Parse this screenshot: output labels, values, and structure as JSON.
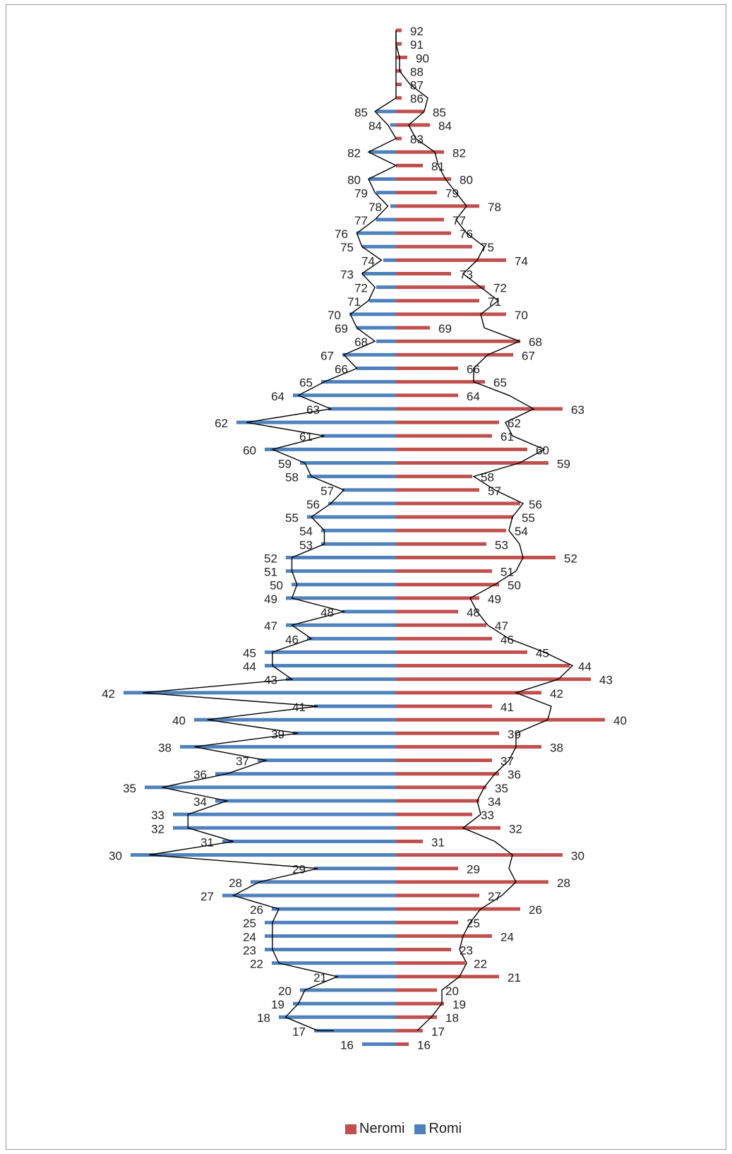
{
  "chart_data": {
    "type": "bar",
    "orientation": "horizontal-diverging",
    "overlay": "line",
    "legend": {
      "position": "bottom",
      "entries": [
        "Neromi",
        "Romi"
      ]
    },
    "colors": {
      "Neromi": "#c0504d",
      "Romi": "#4f81bd",
      "line": "#000000"
    },
    "rows": [
      {
        "label": "92",
        "neromi": 8,
        "romi": 0
      },
      {
        "label": "91",
        "neromi": 8,
        "romi": 0
      },
      {
        "label": "90",
        "neromi": 16,
        "romi": 0
      },
      {
        "label": "88",
        "neromi": 8,
        "romi": 0
      },
      {
        "label": "87",
        "neromi": 8,
        "romi": 0
      },
      {
        "label": "86",
        "neromi": 8,
        "romi": 0
      },
      {
        "label": "85",
        "neromi": 40,
        "romi": 28
      },
      {
        "label": "84",
        "neromi": 48,
        "romi": 8
      },
      {
        "label": "83",
        "neromi": 8,
        "romi": 0
      },
      {
        "label": "82",
        "neromi": 68,
        "romi": 38
      },
      {
        "label": "81",
        "neromi": 38,
        "romi": 0
      },
      {
        "label": "80",
        "neromi": 78,
        "romi": 38
      },
      {
        "label": "79",
        "neromi": 58,
        "romi": 28
      },
      {
        "label": "78",
        "neromi": 118,
        "romi": 8
      },
      {
        "label": "77",
        "neromi": 68,
        "romi": 28
      },
      {
        "label": "76",
        "neromi": 78,
        "romi": 56
      },
      {
        "label": "75",
        "neromi": 108,
        "romi": 48
      },
      {
        "label": "74",
        "neromi": 156,
        "romi": 18
      },
      {
        "label": "73",
        "neromi": 78,
        "romi": 48
      },
      {
        "label": "72",
        "neromi": 126,
        "romi": 28
      },
      {
        "label": "71",
        "neromi": 118,
        "romi": 38
      },
      {
        "label": "70",
        "neromi": 156,
        "romi": 66
      },
      {
        "label": "69",
        "neromi": 48,
        "romi": 56
      },
      {
        "label": "68",
        "neromi": 176,
        "romi": 28
      },
      {
        "label": "67",
        "neromi": 166,
        "romi": 76
      },
      {
        "label": "66",
        "neromi": 88,
        "romi": 56
      },
      {
        "label": "65",
        "neromi": 126,
        "romi": 106
      },
      {
        "label": "64",
        "neromi": 88,
        "romi": 146
      },
      {
        "label": "63",
        "neromi": 236,
        "romi": 96
      },
      {
        "label": "62",
        "neromi": 146,
        "romi": 226
      },
      {
        "label": "61",
        "neromi": 136,
        "romi": 106
      },
      {
        "label": "60",
        "neromi": 186,
        "romi": 186
      },
      {
        "label": "59",
        "neromi": 216,
        "romi": 136
      },
      {
        "label": "58",
        "neromi": 108,
        "romi": 126
      },
      {
        "label": "57",
        "neromi": 118,
        "romi": 76
      },
      {
        "label": "56",
        "neromi": 176,
        "romi": 96
      },
      {
        "label": "55",
        "neromi": 166,
        "romi": 126
      },
      {
        "label": "54",
        "neromi": 156,
        "romi": 106
      },
      {
        "label": "53",
        "neromi": 128,
        "romi": 106
      },
      {
        "label": "52",
        "neromi": 226,
        "romi": 156
      },
      {
        "label": "51",
        "neromi": 136,
        "romi": 156
      },
      {
        "label": "50",
        "neromi": 146,
        "romi": 148
      },
      {
        "label": "49",
        "neromi": 118,
        "romi": 156
      },
      {
        "label": "48",
        "neromi": 88,
        "romi": 76
      },
      {
        "label": "47",
        "neromi": 128,
        "romi": 156
      },
      {
        "label": "46",
        "neromi": 136,
        "romi": 126
      },
      {
        "label": "45",
        "neromi": 186,
        "romi": 186
      },
      {
        "label": "44",
        "neromi": 246,
        "romi": 186
      },
      {
        "label": "43",
        "neromi": 276,
        "romi": 156
      },
      {
        "label": "42",
        "neromi": 206,
        "romi": 386
      },
      {
        "label": "41",
        "neromi": 136,
        "romi": 116
      },
      {
        "label": "40",
        "neromi": 296,
        "romi": 286
      },
      {
        "label": "39",
        "neromi": 146,
        "romi": 146
      },
      {
        "label": "38",
        "neromi": 206,
        "romi": 306
      },
      {
        "label": "37",
        "neromi": 136,
        "romi": 196
      },
      {
        "label": "36",
        "neromi": 146,
        "romi": 256
      },
      {
        "label": "35",
        "neromi": 128,
        "romi": 356
      },
      {
        "label": "34",
        "neromi": 118,
        "romi": 256
      },
      {
        "label": "33",
        "neromi": 108,
        "romi": 316
      },
      {
        "label": "32",
        "neromi": 148,
        "romi": 316
      },
      {
        "label": "31",
        "neromi": 38,
        "romi": 246
      },
      {
        "label": "30",
        "neromi": 236,
        "romi": 376
      },
      {
        "label": "29",
        "neromi": 88,
        "romi": 116
      },
      {
        "label": "28",
        "neromi": 216,
        "romi": 206
      },
      {
        "label": "27",
        "neromi": 118,
        "romi": 246
      },
      {
        "label": "26",
        "neromi": 176,
        "romi": 176
      },
      {
        "label": "25",
        "neromi": 88,
        "romi": 186
      },
      {
        "label": "24",
        "neromi": 136,
        "romi": 186
      },
      {
        "label": "23",
        "neromi": 78,
        "romi": 186
      },
      {
        "label": "22",
        "neromi": 98,
        "romi": 176
      },
      {
        "label": "21",
        "neromi": 146,
        "romi": 86
      },
      {
        "label": "20",
        "neromi": 58,
        "romi": 136
      },
      {
        "label": "19",
        "neromi": 68,
        "romi": 146
      },
      {
        "label": "18",
        "neromi": 58,
        "romi": 166
      },
      {
        "label": "17",
        "neromi": 38,
        "romi": 116
      },
      {
        "label": "16",
        "neromi": 18,
        "romi": 48
      }
    ],
    "line": [
      {
        "label": "92",
        "value": 0
      },
      {
        "label": "91",
        "value": 0
      },
      {
        "label": "90",
        "value": 5
      },
      {
        "label": "88",
        "value": 5
      },
      {
        "label": "87",
        "value": 20
      },
      {
        "label": "86",
        "value": 45
      },
      {
        "label": "85",
        "value": 40
      },
      {
        "label": "84",
        "value": 18
      },
      {
        "label": "83",
        "value": 28
      },
      {
        "label": "82",
        "value": 55
      },
      {
        "label": "81",
        "value": 60
      },
      {
        "label": "80",
        "value": 70
      },
      {
        "label": "79",
        "value": 85
      },
      {
        "label": "78",
        "value": 100
      },
      {
        "label": "77",
        "value": 85
      },
      {
        "label": "76",
        "value": 100
      },
      {
        "label": "75",
        "value": 125
      },
      {
        "label": "74",
        "value": 115
      },
      {
        "label": "73",
        "value": 95
      },
      {
        "label": "72",
        "value": 120
      },
      {
        "label": "71",
        "value": 145
      },
      {
        "label": "70",
        "value": 120
      },
      {
        "label": "69",
        "value": 125
      },
      {
        "label": "68",
        "value": 175
      },
      {
        "label": "67",
        "value": 130
      },
      {
        "label": "66",
        "value": 110
      },
      {
        "label": "65",
        "value": 110
      },
      {
        "label": "64",
        "value": 160
      },
      {
        "label": "63",
        "value": 195
      },
      {
        "label": "62",
        "value": 155
      },
      {
        "label": "61",
        "value": 165
      },
      {
        "label": "60",
        "value": 210
      },
      {
        "label": "59",
        "value": 175
      },
      {
        "label": "58",
        "value": 110
      },
      {
        "label": "57",
        "value": 140
      },
      {
        "label": "56",
        "value": 180
      },
      {
        "label": "55",
        "value": 165
      },
      {
        "label": "54",
        "value": 160
      },
      {
        "label": "53",
        "value": 175
      },
      {
        "label": "52",
        "value": 180
      },
      {
        "label": "51",
        "value": 170
      },
      {
        "label": "50",
        "value": 140
      },
      {
        "label": "49",
        "value": 105
      },
      {
        "label": "48",
        "value": 115
      },
      {
        "label": "47",
        "value": 130
      },
      {
        "label": "46",
        "value": 160
      },
      {
        "label": "45",
        "value": 210
      },
      {
        "label": "44",
        "value": 250
      },
      {
        "label": "43",
        "value": 230
      },
      {
        "label": "42",
        "value": 170
      },
      {
        "label": "41",
        "value": 220
      },
      {
        "label": "40",
        "value": 215
      },
      {
        "label": "39",
        "value": 170
      },
      {
        "label": "38",
        "value": 170
      },
      {
        "label": "37",
        "value": 160
      },
      {
        "label": "36",
        "value": 140
      },
      {
        "label": "35",
        "value": 125
      },
      {
        "label": "34",
        "value": 115
      },
      {
        "label": "33",
        "value": 120
      },
      {
        "label": "32",
        "value": 95
      },
      {
        "label": "31",
        "value": 140
      },
      {
        "label": "30",
        "value": 165
      },
      {
        "label": "29",
        "value": 160
      },
      {
        "label": "28",
        "value": 170
      },
      {
        "label": "27",
        "value": 150
      },
      {
        "label": "26",
        "value": 120
      },
      {
        "label": "25",
        "value": 105
      },
      {
        "label": "24",
        "value": 95
      },
      {
        "label": "23",
        "value": 90
      },
      {
        "label": "22",
        "value": 100
      },
      {
        "label": "21",
        "value": 90
      },
      {
        "label": "20",
        "value": 65
      },
      {
        "label": "19",
        "value": 65
      },
      {
        "label": "18",
        "value": 50
      },
      {
        "label": "17",
        "value": 30
      }
    ],
    "line_end": {
      "label": "17",
      "romi_side_value": 88
    }
  }
}
